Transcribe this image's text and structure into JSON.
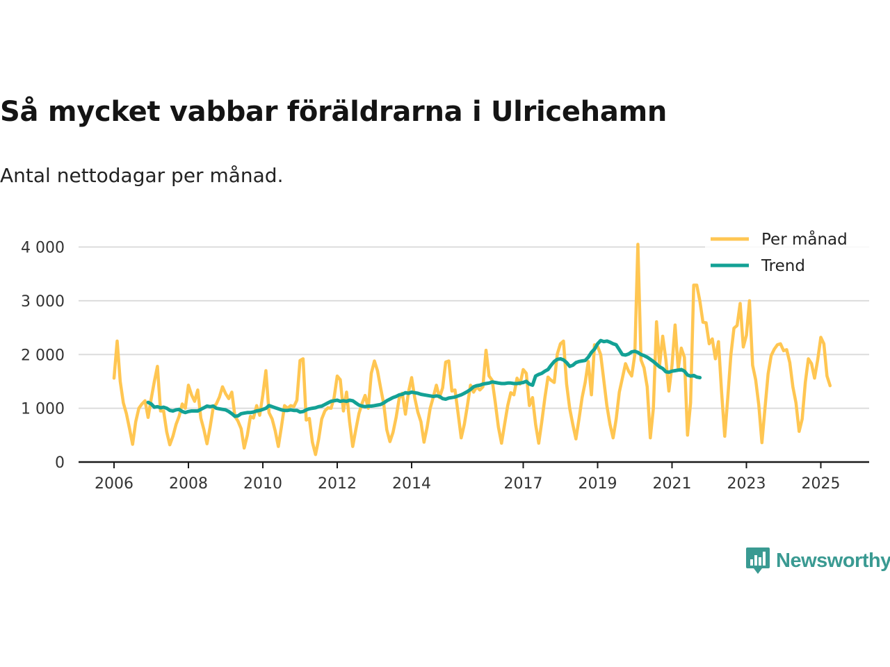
{
  "header": {
    "title": "Så mycket vabbar föräldrarna i Ulricehamn",
    "subtitle": "Antal nettodagar per månad."
  },
  "brand": {
    "name": "Newsworthy"
  },
  "colors": {
    "monthly": "#ffc652",
    "trend": "#13a195",
    "grid": "#dcdcdc",
    "axis": "#1a1a1a",
    "brand": "#3a9a92"
  },
  "chart_data": {
    "type": "line",
    "title": "Så mycket vabbar föräldrarna i Ulricehamn",
    "subtitle": "Antal nettodagar per månad.",
    "xlabel": "",
    "ylabel": "",
    "xlim": [
      2005.95,
      2025.95
    ],
    "ylim": [
      0,
      4100
    ],
    "y_ticks": [
      0,
      1000,
      2000,
      3000,
      4000
    ],
    "y_tick_labels": [
      "0",
      "1 000",
      "2 000",
      "3 000",
      "4 000"
    ],
    "x_ticks": [
      2006,
      2008,
      2010,
      2012,
      2014,
      2017,
      2019,
      2021,
      2023,
      2025
    ],
    "x_tick_labels": [
      "2006",
      "2008",
      "2010",
      "2012",
      "2014",
      "2017",
      "2019",
      "2021",
      "2023",
      "2025"
    ],
    "grid": true,
    "legend": "top-right",
    "x_start": 2006.0,
    "x_step": 0.08333,
    "series": [
      {
        "name": "Per månad",
        "values": [
          1560,
          2250,
          1500,
          1100,
          900,
          620,
          330,
          750,
          1000,
          1080,
          1140,
          830,
          1180,
          1500,
          1780,
          950,
          950,
          560,
          320,
          480,
          700,
          850,
          1080,
          1000,
          1430,
          1250,
          1130,
          1340,
          820,
          600,
          340,
          650,
          1020,
          1080,
          1210,
          1400,
          1270,
          1180,
          1300,
          850,
          760,
          620,
          260,
          500,
          850,
          820,
          1050,
          870,
          1250,
          1700,
          920,
          800,
          580,
          290,
          650,
          1050,
          1000,
          1050,
          1030,
          1150,
          1890,
          1920,
          780,
          810,
          370,
          140,
          420,
          800,
          950,
          1010,
          1000,
          1200,
          1600,
          1530,
          950,
          1300,
          750,
          290,
          600,
          900,
          1090,
          1240,
          1000,
          1650,
          1880,
          1700,
          1380,
          1080,
          600,
          380,
          550,
          830,
          1190,
          1280,
          890,
          1300,
          1570,
          1200,
          930,
          750,
          370,
          650,
          1000,
          1210,
          1430,
          1200,
          1380,
          1860,
          1880,
          1320,
          1340,
          900,
          450,
          700,
          1050,
          1430,
          1300,
          1400,
          1340,
          1400,
          2080,
          1600,
          1520,
          1100,
          650,
          350,
          700,
          1050,
          1290,
          1250,
          1560,
          1450,
          1720,
          1650,
          1050,
          1200,
          700,
          350,
          750,
          1200,
          1580,
          1520,
          1480,
          2010,
          2200,
          2250,
          1450,
          1000,
          700,
          430,
          800,
          1200,
          1480,
          1870,
          1250,
          2180,
          2150,
          2000,
          1520,
          1050,
          700,
          450,
          800,
          1300,
          1560,
          1830,
          1690,
          1600,
          2000,
          4050,
          1900,
          1750,
          1400,
          450,
          1000,
          2610,
          1800,
          2340,
          1910,
          1320,
          1800,
          2550,
          1730,
          2120,
          1950,
          500,
          1100,
          3290,
          3290,
          2990,
          2600,
          2590,
          2200,
          2290,
          1920,
          2240,
          1300,
          480,
          1200,
          2000,
          2490,
          2540,
          2950,
          2140,
          2360,
          3000,
          1800,
          1530,
          1060,
          360,
          1000,
          1640,
          1980,
          2100,
          2180,
          2200,
          2070,
          2090,
          1850,
          1400,
          1100,
          570,
          800,
          1480,
          1920,
          1830,
          1560,
          1900,
          2320,
          2200,
          1600,
          1420
        ]
      },
      {
        "name": "Trend",
        "x_start": 2006.9167,
        "values": [
          1110,
          1080,
          1020,
          1030,
          1010,
          1020,
          1000,
          960,
          950,
          970,
          980,
          940,
          920,
          940,
          950,
          950,
          950,
          980,
          1010,
          1040,
          1030,
          1040,
          1000,
          990,
          980,
          970,
          940,
          900,
          850,
          860,
          900,
          910,
          920,
          920,
          930,
          950,
          960,
          980,
          1000,
          1050,
          1030,
          1010,
          990,
          970,
          960,
          960,
          970,
          960,
          960,
          930,
          940,
          970,
          990,
          1000,
          1010,
          1030,
          1040,
          1070,
          1100,
          1130,
          1140,
          1150,
          1130,
          1140,
          1130,
          1150,
          1140,
          1100,
          1060,
          1040,
          1030,
          1040,
          1040,
          1050,
          1060,
          1070,
          1100,
          1140,
          1170,
          1200,
          1220,
          1250,
          1260,
          1290,
          1280,
          1300,
          1290,
          1280,
          1260,
          1250,
          1240,
          1230,
          1220,
          1230,
          1220,
          1180,
          1170,
          1190,
          1200,
          1210,
          1230,
          1250,
          1280,
          1310,
          1350,
          1400,
          1420,
          1430,
          1450,
          1460,
          1470,
          1490,
          1480,
          1470,
          1460,
          1460,
          1470,
          1470,
          1460,
          1460,
          1470,
          1480,
          1500,
          1450,
          1430,
          1600,
          1630,
          1650,
          1690,
          1720,
          1800,
          1870,
          1910,
          1920,
          1900,
          1850,
          1780,
          1800,
          1850,
          1870,
          1880,
          1890,
          1950,
          2040,
          2100,
          2200,
          2260,
          2240,
          2250,
          2230,
          2200,
          2180,
          2090,
          2000,
          1990,
          2010,
          2050,
          2060,
          2040,
          2000,
          1980,
          1950,
          1910,
          1870,
          1820,
          1770,
          1740,
          1680,
          1670,
          1690,
          1700,
          1710,
          1720,
          1690,
          1620,
          1600,
          1610,
          1580,
          1570
        ]
      }
    ]
  }
}
